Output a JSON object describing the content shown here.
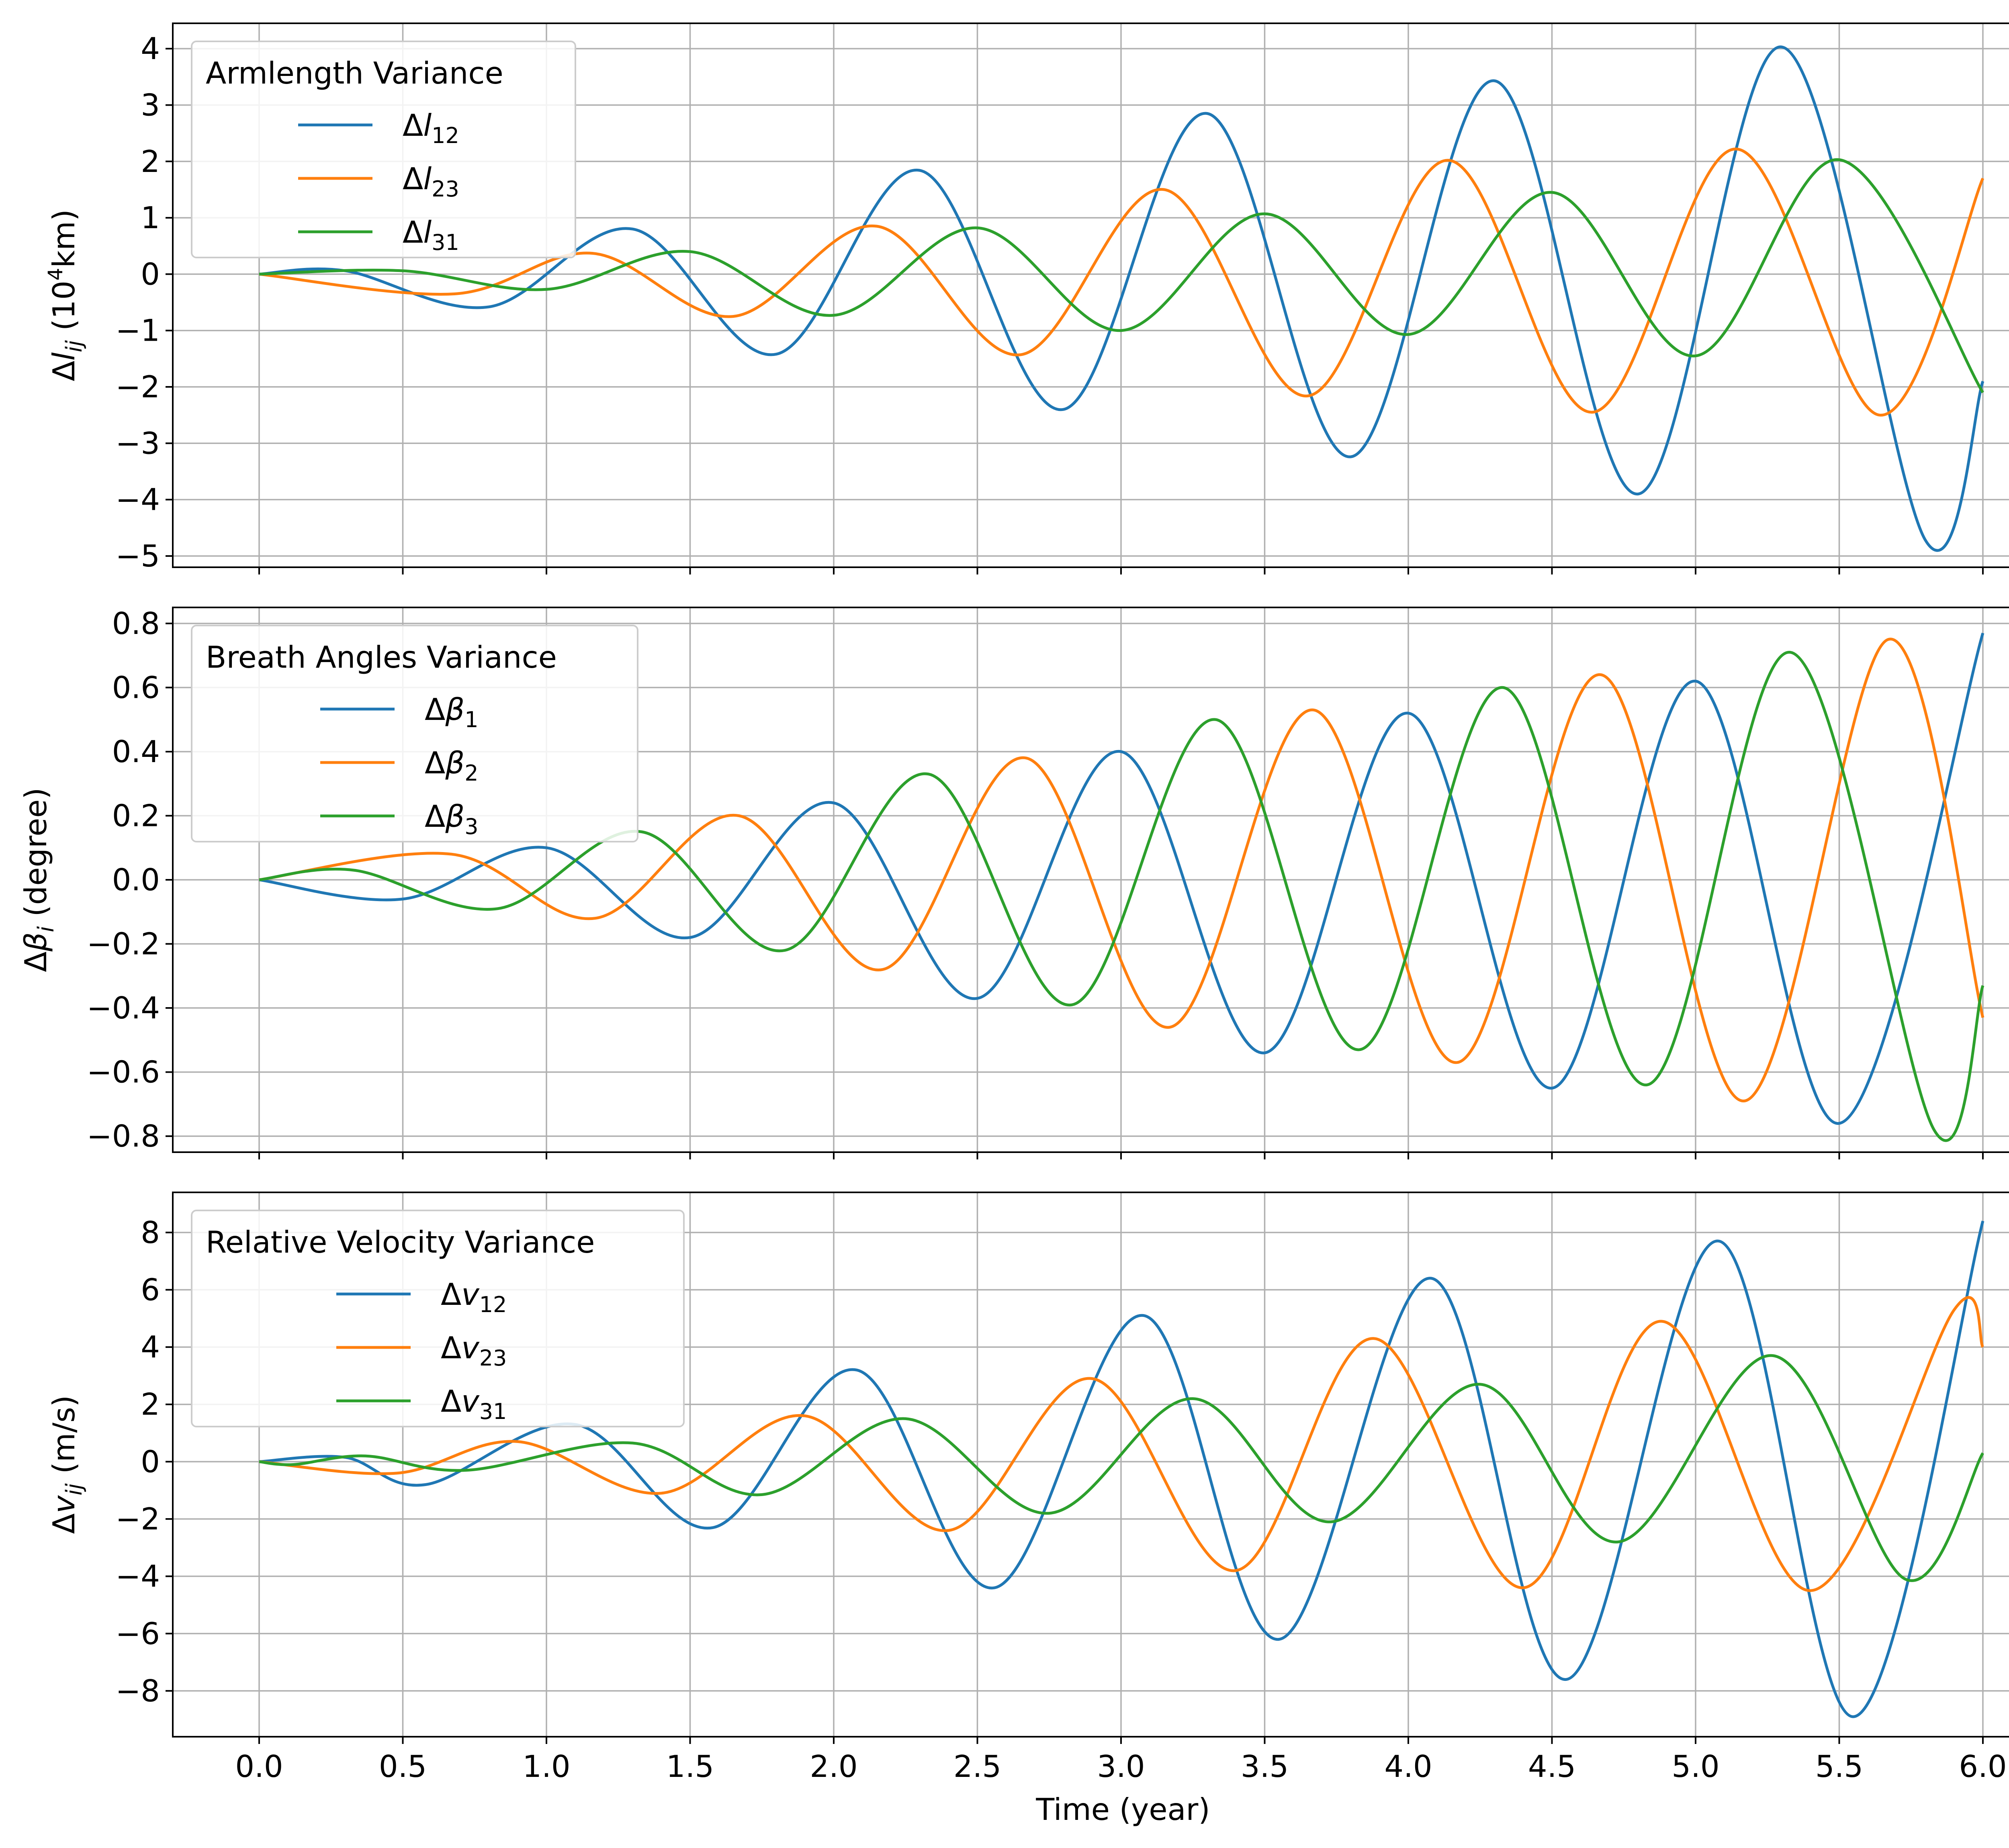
{
  "x_axis": {
    "label": "Time (year)",
    "ticks": [
      "0.0",
      "0.5",
      "1.0",
      "1.5",
      "2.0",
      "2.5",
      "3.0",
      "3.5",
      "4.0",
      "4.5",
      "5.0",
      "5.5",
      "6.0"
    ]
  },
  "colors": {
    "c1": "#1f77b4",
    "c2": "#ff7f0e",
    "c3": "#2ca02c",
    "grid": "#b0b0b0",
    "frame": "#000000"
  },
  "chart_data": [
    {
      "type": "line",
      "x_range": [
        0,
        6
      ],
      "ylim": [
        -5.2,
        4.45
      ],
      "ylabel": {
        "prefix": "Δ",
        "symbol": "l",
        "sub": "ij",
        "unit_open": " (10",
        "unit_sup": "4",
        "unit_close": "km)"
      },
      "yticks": [
        4,
        3,
        2,
        1,
        0,
        -1,
        -2,
        -3,
        -4,
        -5
      ],
      "ytick_labels": [
        "4",
        "3",
        "2",
        "1",
        "0",
        "−1",
        "−2",
        "−3",
        "−4",
        "−5"
      ],
      "legend_title": "Armlength Variance",
      "legend_position": "top-left",
      "series": [
        {
          "name": "Δl12",
          "label_prefix": "Δ",
          "label_symbol": "l",
          "label_sub": "12",
          "color": "#1f77b4",
          "x": [
            0,
            0.3,
            0.8,
            1.3,
            1.8,
            2.3,
            2.8,
            3.3,
            3.8,
            4.3,
            4.8,
            5.3,
            5.8,
            6.0
          ],
          "y": [
            0,
            0.06,
            -0.58,
            0.8,
            -1.42,
            1.84,
            -2.4,
            2.85,
            -3.24,
            3.43,
            -3.9,
            4.03,
            -4.72,
            -1.9
          ]
        },
        {
          "name": "Δl23",
          "label_prefix": "Δ",
          "label_symbol": "l",
          "label_sub": "23",
          "color": "#ff7f0e",
          "x": [
            0,
            0.68,
            1.16,
            1.65,
            2.15,
            2.65,
            3.15,
            3.65,
            4.14,
            4.64,
            5.14,
            5.64,
            6.0
          ],
          "y": [
            0,
            -0.35,
            0.37,
            -0.75,
            0.85,
            -1.43,
            1.5,
            -2.16,
            2.02,
            -2.45,
            2.22,
            -2.5,
            1.7
          ]
        },
        {
          "name": "Δl31",
          "label_prefix": "Δ",
          "label_symbol": "l",
          "label_sub": "31",
          "color": "#2ca02c",
          "x": [
            0,
            0.5,
            1.0,
            1.5,
            2.0,
            2.5,
            3.0,
            3.5,
            4.0,
            4.5,
            5.0,
            5.5,
            6.0
          ],
          "y": [
            0,
            0.06,
            -0.27,
            0.4,
            -0.73,
            0.82,
            -1.0,
            1.07,
            -1.07,
            1.45,
            -1.45,
            2.03,
            -2.1
          ]
        }
      ]
    },
    {
      "type": "line",
      "x_range": [
        0,
        6
      ],
      "ylim": [
        -0.85,
        0.85
      ],
      "ylabel": {
        "prefix": "Δ",
        "symbol": "β",
        "sub": "i",
        "unit_open": " (degree)",
        "unit_sup": "",
        "unit_close": ""
      },
      "yticks": [
        0.8,
        0.6,
        0.4,
        0.2,
        0.0,
        -0.2,
        -0.4,
        -0.6,
        -0.8
      ],
      "ytick_labels": [
        "0.8",
        "0.6",
        "0.4",
        "0.2",
        "0.0",
        "−0.2",
        "−0.4",
        "−0.6",
        "−0.8"
      ],
      "legend_title": "Breath Angles Variance",
      "legend_position": "top-left",
      "series": [
        {
          "name": "Δβ1",
          "label_prefix": "Δ",
          "label_symbol": "β",
          "label_sub": "1",
          "color": "#1f77b4",
          "x": [
            0,
            0.5,
            1.0,
            1.5,
            2.0,
            2.5,
            3.0,
            3.5,
            4.0,
            4.5,
            5.0,
            5.5,
            6.0
          ],
          "y": [
            0,
            -0.06,
            0.1,
            -0.18,
            0.24,
            -0.37,
            0.4,
            -0.54,
            0.52,
            -0.65,
            0.62,
            -0.76,
            0.77
          ]
        },
        {
          "name": "Δβ2",
          "label_prefix": "Δ",
          "label_symbol": "β",
          "label_sub": "2",
          "color": "#ff7f0e",
          "x": [
            0,
            0.67,
            1.17,
            1.67,
            2.17,
            2.67,
            3.17,
            3.67,
            4.17,
            4.67,
            5.17,
            5.67,
            6.0
          ],
          "y": [
            0,
            0.08,
            -0.12,
            0.2,
            -0.28,
            0.38,
            -0.46,
            0.53,
            -0.57,
            0.64,
            -0.69,
            0.75,
            -0.43
          ]
        },
        {
          "name": "Δβ3",
          "label_prefix": "Δ",
          "label_symbol": "β",
          "label_sub": "3",
          "color": "#2ca02c",
          "x": [
            0,
            0.33,
            0.83,
            1.33,
            1.83,
            2.33,
            2.83,
            3.33,
            3.83,
            4.33,
            4.83,
            5.33,
            5.83,
            6.0
          ],
          "y": [
            0,
            0.03,
            -0.09,
            0.15,
            -0.22,
            0.33,
            -0.39,
            0.5,
            -0.53,
            0.6,
            -0.64,
            0.71,
            -0.78,
            -0.33
          ]
        }
      ]
    },
    {
      "type": "line",
      "x_range": [
        0,
        6
      ],
      "ylim": [
        -9.6,
        9.4
      ],
      "ylabel": {
        "prefix": "Δ",
        "symbol": "v",
        "sub": "ij",
        "unit_open": " (m/s)",
        "unit_sup": "",
        "unit_close": ""
      },
      "yticks": [
        8,
        6,
        4,
        2,
        0,
        -2,
        -4,
        -6,
        -8
      ],
      "ytick_labels": [
        "8",
        "6",
        "4",
        "2",
        "0",
        "−2",
        "−4",
        "−6",
        "−8"
      ],
      "legend_title": "Relative Velocity Variance",
      "legend_position": "top-left",
      "series": [
        {
          "name": "Δv12",
          "label_prefix": "Δ",
          "label_symbol": "v",
          "label_sub": "12",
          "color": "#1f77b4",
          "x": [
            0,
            0.3,
            0.58,
            1.1,
            1.58,
            2.08,
            2.56,
            3.08,
            3.55,
            4.08,
            4.55,
            5.08,
            5.55,
            6.0
          ],
          "y": [
            0,
            0.15,
            -0.8,
            1.3,
            -2.3,
            3.2,
            -4.4,
            5.1,
            -6.2,
            6.4,
            -7.6,
            7.7,
            -8.9,
            8.4
          ]
        },
        {
          "name": "Δv23",
          "label_prefix": "Δ",
          "label_symbol": "v",
          "label_sub": "23",
          "color": "#ff7f0e",
          "x": [
            0,
            0.48,
            0.9,
            1.4,
            1.9,
            2.4,
            2.9,
            3.4,
            3.88,
            4.4,
            4.88,
            5.4,
            5.9,
            6.0
          ],
          "y": [
            0,
            -0.4,
            0.7,
            -1.1,
            1.6,
            -2.4,
            2.9,
            -3.8,
            4.3,
            -4.4,
            4.9,
            -4.5,
            5.3,
            4.0
          ]
        },
        {
          "name": "Δv31",
          "label_prefix": "Δ",
          "label_symbol": "v",
          "label_sub": "31",
          "color": "#2ca02c",
          "x": [
            0,
            0.12,
            0.37,
            0.72,
            1.3,
            1.75,
            2.25,
            2.75,
            3.25,
            3.73,
            4.25,
            4.73,
            5.27,
            5.73,
            6.0
          ],
          "y": [
            0,
            -0.1,
            0.2,
            -0.3,
            0.65,
            -1.15,
            1.5,
            -1.8,
            2.2,
            -2.1,
            2.7,
            -2.8,
            3.7,
            -4.1,
            0.3
          ]
        }
      ]
    }
  ]
}
